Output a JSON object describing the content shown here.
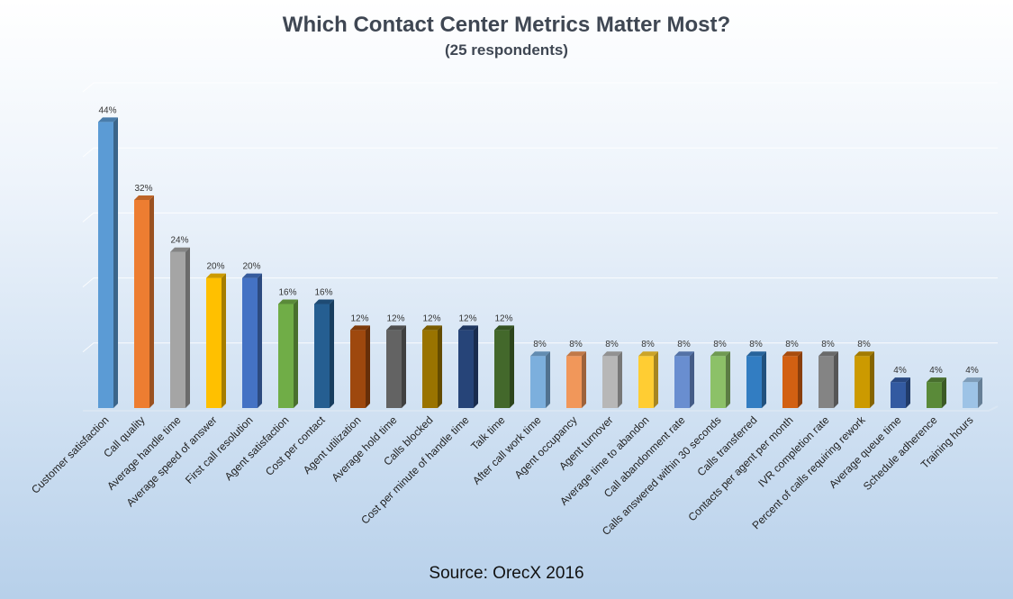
{
  "chart_data": {
    "type": "bar",
    "title": "Which Contact Center Metrics Matter Most?",
    "subtitle": "(25 respondents)",
    "source": "Source: OrecX 2016",
    "xlabel": "",
    "ylabel": "",
    "ylim": [
      0,
      0.5
    ],
    "grid": true,
    "legend": "none",
    "categories": [
      "Customer satisfaction",
      "Call quality",
      "Average handle time",
      "Average speed of answer",
      "First call resolution",
      "Agent satisfaction",
      "Cost per contact",
      "Agent utilization",
      "Average hold time",
      "Calls blocked",
      "Cost per minute of handle time",
      "Talk time",
      "After call work time",
      "Agent occupancy",
      "Agent turnover",
      "Average time to abandon",
      "Call abandonment rate",
      "Calls answered within 30 seconds",
      "Calls transferred",
      "Contacts per agent per month",
      "IVR completion rate",
      "Percent of calls requiring rework",
      "Average queue time",
      "Schedule adherence",
      "Training hours"
    ],
    "values": [
      0.44,
      0.32,
      0.24,
      0.2,
      0.2,
      0.16,
      0.16,
      0.12,
      0.12,
      0.12,
      0.12,
      0.12,
      0.08,
      0.08,
      0.08,
      0.08,
      0.08,
      0.08,
      0.08,
      0.08,
      0.08,
      0.08,
      0.04,
      0.04,
      0.04
    ],
    "labels": [
      "44%",
      "32%",
      "24%",
      "20%",
      "20%",
      "16%",
      "16%",
      "12%",
      "12%",
      "12%",
      "12%",
      "12%",
      "8%",
      "8%",
      "8%",
      "8%",
      "8%",
      "8%",
      "8%",
      "8%",
      "8%",
      "8%",
      "4%",
      "4%",
      "4%"
    ],
    "colors": [
      "#5b9bd5",
      "#ed7d31",
      "#a5a5a5",
      "#ffc000",
      "#4472c4",
      "#70ad47",
      "#255e91",
      "#9e480e",
      "#636363",
      "#997300",
      "#264478",
      "#43682b",
      "#7cafdd",
      "#f1975a",
      "#b7b7b7",
      "#ffcd33",
      "#698ed0",
      "#8cc168",
      "#327dc2",
      "#d26012",
      "#848484",
      "#cc9a00",
      "#335aa1",
      "#5a8a39",
      "#9dc3e6"
    ]
  }
}
